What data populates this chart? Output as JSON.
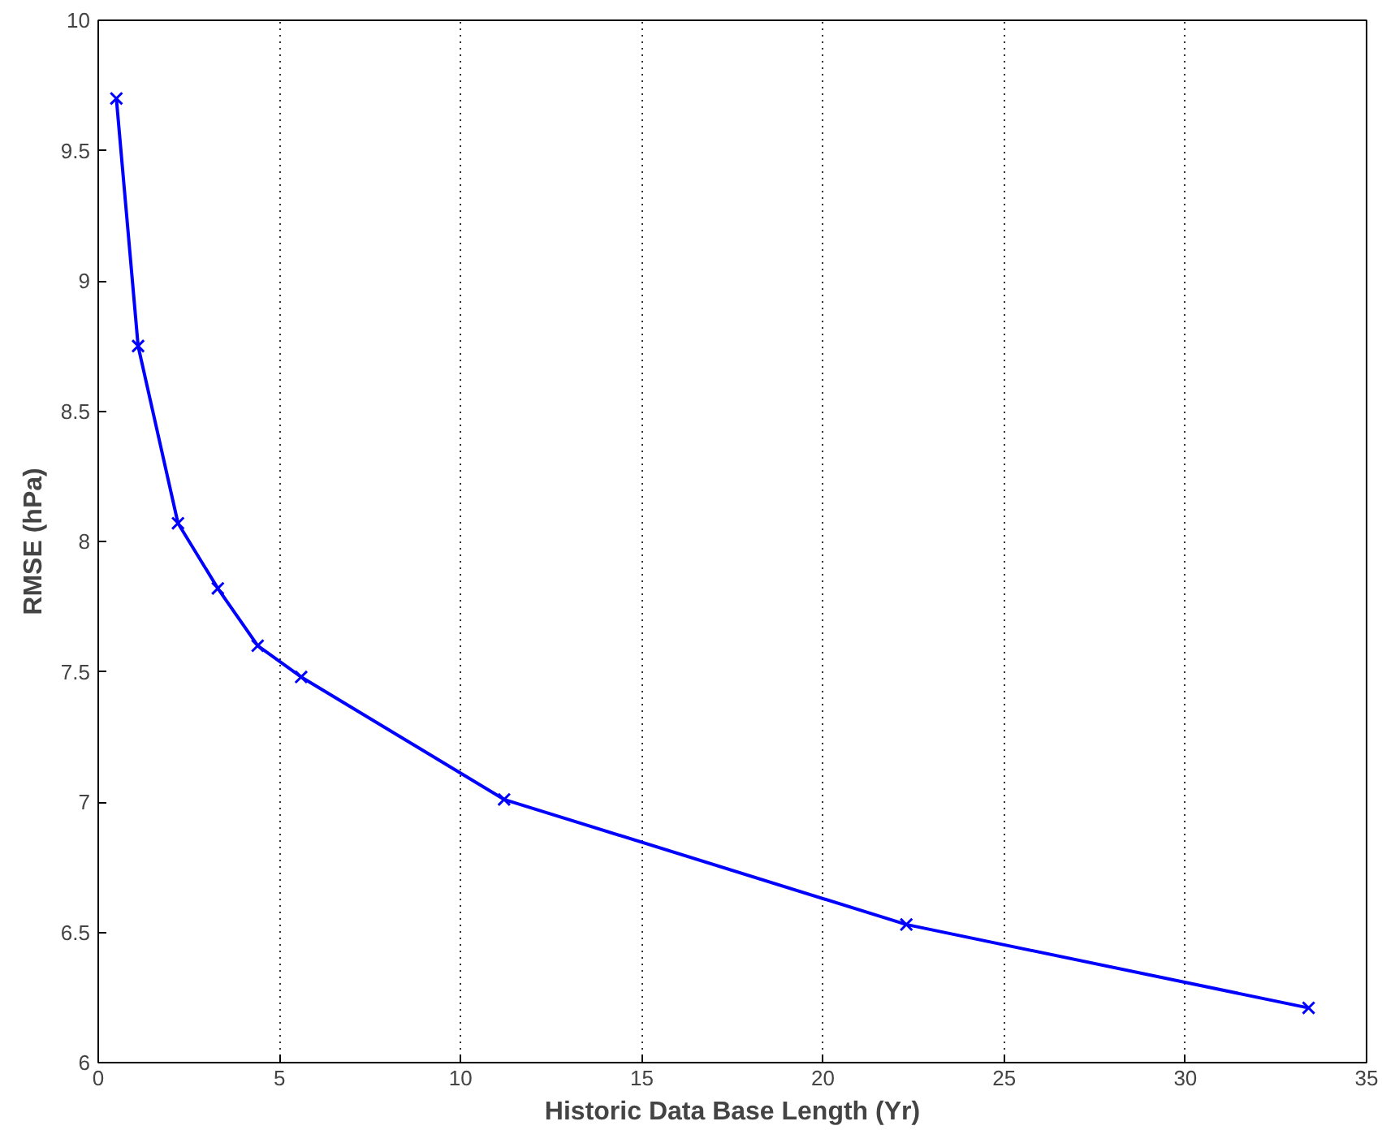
{
  "chart_data": {
    "type": "line",
    "xlabel": "Historic Data Base Length (Yr)",
    "ylabel": "RMSE (hPa)",
    "x": [
      0.5,
      1.1,
      2.2,
      3.3,
      4.4,
      5.6,
      11.2,
      22.3,
      33.4
    ],
    "series": [
      {
        "color": "#0000ff",
        "values": [
          9.7,
          8.75,
          8.07,
          7.82,
          7.6,
          7.48,
          7.01,
          6.53,
          6.21
        ]
      }
    ],
    "xlim": [
      0,
      35
    ],
    "xticks": [
      0,
      5,
      10,
      15,
      20,
      25,
      30,
      35
    ],
    "ylim": [
      6,
      10
    ],
    "yticks": [
      6,
      6.5,
      7,
      7.5,
      8,
      8.5,
      9,
      9.5,
      10
    ],
    "grid": "x",
    "marker": "cross",
    "line_style": "solid"
  }
}
